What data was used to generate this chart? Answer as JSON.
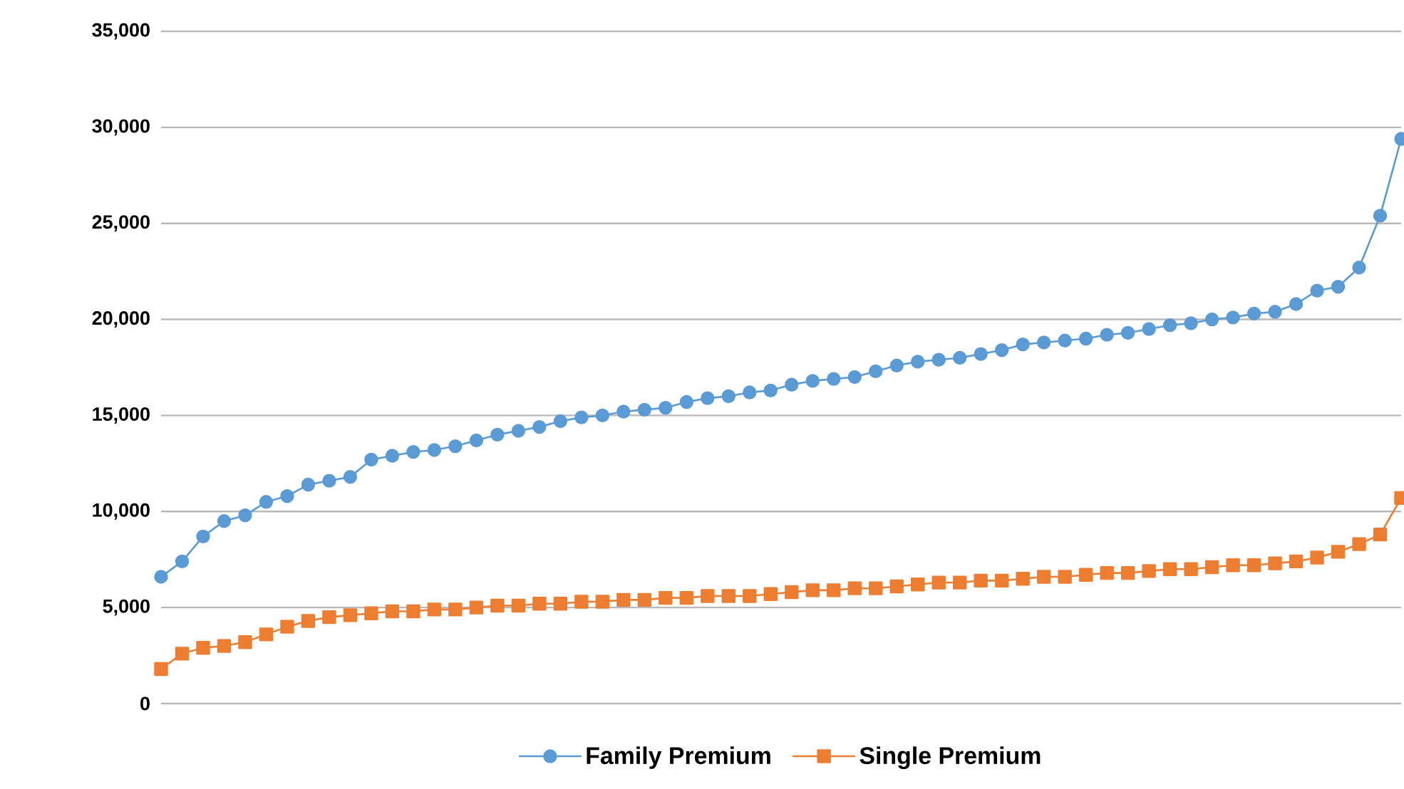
{
  "chart_data": {
    "type": "line",
    "categories": [
      null,
      null,
      null,
      null,
      null,
      null,
      null,
      null,
      null,
      null,
      null,
      null,
      null,
      null,
      null,
      null,
      null,
      null,
      null,
      null,
      null,
      null,
      null,
      null,
      null,
      null,
      null,
      null,
      null,
      null,
      null,
      null,
      null,
      null,
      null,
      null,
      null,
      null,
      null,
      null,
      null,
      null,
      null,
      null,
      null,
      null,
      null,
      null,
      null,
      null,
      null,
      null,
      null,
      null,
      null,
      null,
      null,
      null,
      null,
      null
    ],
    "series": [
      {
        "name": "Family Premium",
        "color": "#5b9bd5",
        "marker": "circle",
        "values": [
          6600,
          7400,
          8700,
          9500,
          9800,
          10500,
          10800,
          11400,
          11600,
          11800,
          12700,
          12900,
          13100,
          13200,
          13400,
          13700,
          14000,
          14200,
          14400,
          14700,
          14900,
          15000,
          15200,
          15300,
          15400,
          15700,
          15900,
          16000,
          16200,
          16300,
          16600,
          16800,
          16900,
          17000,
          17300,
          17600,
          17800,
          17900,
          18000,
          18200,
          18400,
          18700,
          18800,
          18900,
          19000,
          19200,
          19300,
          19500,
          19700,
          19800,
          20000,
          20100,
          20300,
          20400,
          20800,
          21500,
          21700,
          22700,
          25400,
          29400
        ]
      },
      {
        "name": "Single Premium",
        "color": "#ed7d31",
        "marker": "square",
        "values": [
          1800,
          2600,
          2900,
          3000,
          3200,
          3600,
          4000,
          4300,
          4500,
          4600,
          4700,
          4800,
          4800,
          4900,
          4900,
          5000,
          5100,
          5100,
          5200,
          5200,
          5300,
          5300,
          5400,
          5400,
          5500,
          5500,
          5600,
          5600,
          5600,
          5700,
          5800,
          5900,
          5900,
          6000,
          6000,
          6100,
          6200,
          6300,
          6300,
          6400,
          6400,
          6500,
          6600,
          6600,
          6700,
          6800,
          6800,
          6900,
          7000,
          7000,
          7100,
          7200,
          7200,
          7300,
          7400,
          7600,
          7900,
          8300,
          8800,
          10700
        ]
      }
    ],
    "ylim": [
      0,
      35000
    ],
    "yticks": [
      {
        "value": 0,
        "label": "0"
      },
      {
        "value": 5000,
        "label": "5,000"
      },
      {
        "value": 10000,
        "label": "10,000"
      },
      {
        "value": 15000,
        "label": "15,000"
      },
      {
        "value": 20000,
        "label": "20,000"
      },
      {
        "value": 25000,
        "label": "25,000"
      },
      {
        "value": 30000,
        "label": "30,000"
      },
      {
        "value": 35000,
        "label": "35,000"
      }
    ],
    "grid": "y",
    "legend": "bottom",
    "line_style": "solid"
  }
}
